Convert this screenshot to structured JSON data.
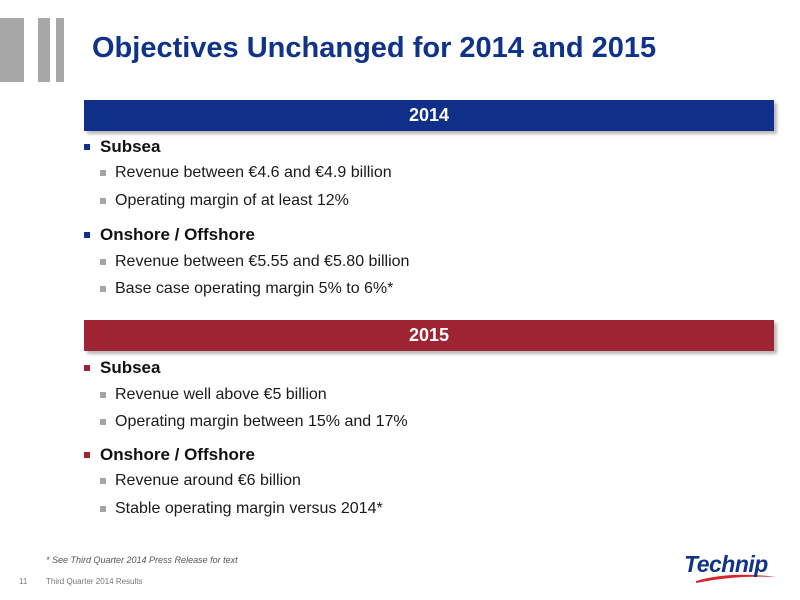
{
  "slide": {
    "title": "Objectives Unchanged for 2014 and 2015",
    "sections": [
      {
        "year": "2014",
        "color": "#0f2f88",
        "segments": [
          {
            "name": "Subsea",
            "items": [
              "Revenue between €4.6 and €4.9 billion",
              "Operating margin of at least 12%"
            ]
          },
          {
            "name": "Onshore / Offshore",
            "items": [
              "Revenue between €5.55 and €5.80 billion",
              "Base case operating margin 5% to 6%*"
            ]
          }
        ]
      },
      {
        "year": "2015",
        "color": "#9f2433",
        "segments": [
          {
            "name": "Subsea",
            "items": [
              "Revenue well above €5 billion",
              "Operating margin between 15% and 17%"
            ]
          },
          {
            "name": "Onshore / Offshore",
            "items": [
              "Revenue around €6 billion",
              "Stable operating margin versus 2014*"
            ]
          }
        ]
      }
    ],
    "footnote": "* See Third Quarter 2014 Press Release for text",
    "page_number": "11",
    "footer": "Third Quarter 2014 Results",
    "logo_text": "Technip"
  }
}
